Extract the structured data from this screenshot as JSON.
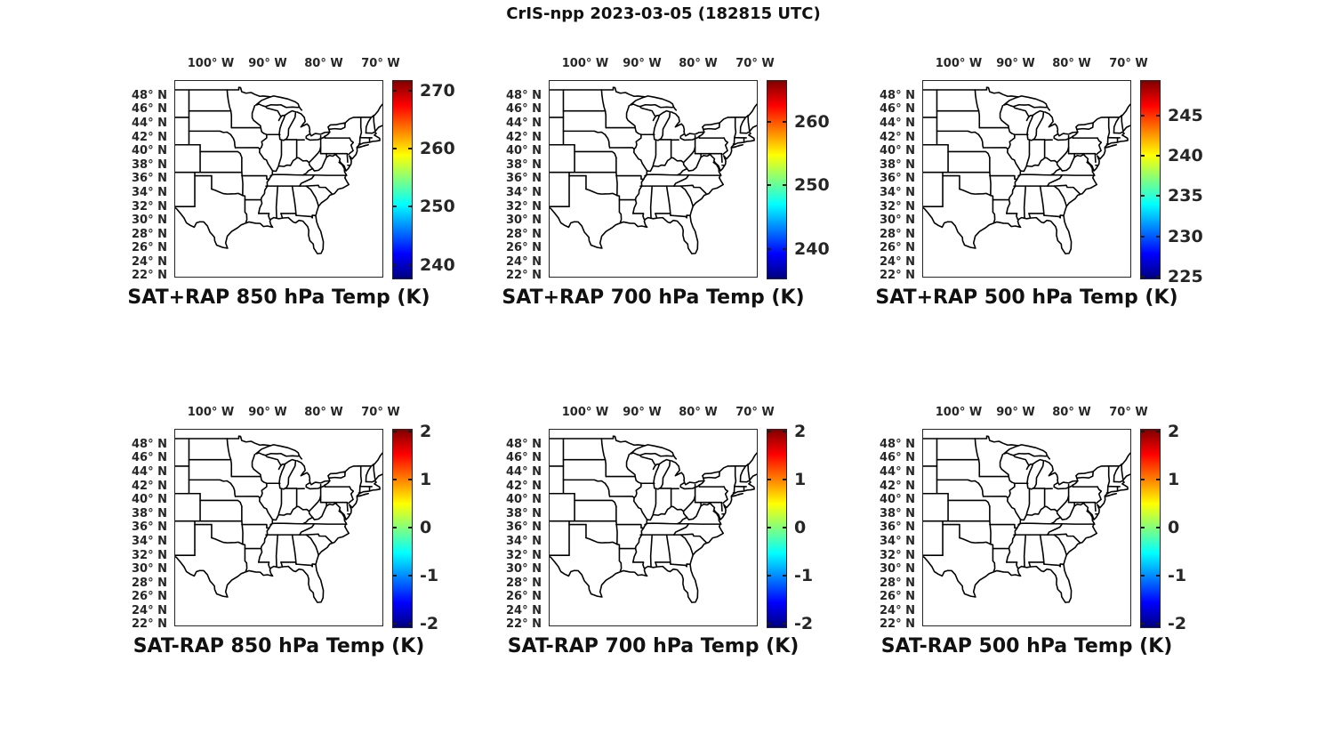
{
  "figure_title": "CrIS-npp 2023-03-05 (182815 UTC)",
  "colors": {
    "background": "#ffffff",
    "text": "#262626",
    "geo_line": "#000000",
    "frame": "#262626",
    "jet_stops": [
      "#800000",
      "#ff0000",
      "#ffff00",
      "#00ffff",
      "#0000ff",
      "#000080"
    ],
    "jet_positions": [
      0,
      0.125,
      0.375,
      0.625,
      0.875,
      1
    ]
  },
  "chart_data": [
    {
      "type": "heatmap",
      "title": "SAT+RAP 850 hPa Temp (K)",
      "basemap": "US state and coastline outlines (eastern CONUS)",
      "colormap": "jet",
      "lon_range": [
        -106.5,
        -69.5
      ],
      "lat_range": [
        21.8,
        50.3
      ],
      "x_tick_lons": [
        -100,
        -90,
        -80,
        -70
      ],
      "x_tick_labels": [
        "100° W",
        "90° W",
        "80° W",
        "70° W"
      ],
      "y_tick_lats": [
        48,
        46,
        44,
        42,
        40,
        38,
        36,
        34,
        32,
        30,
        28,
        26,
        24,
        22
      ],
      "y_tick_labels": [
        "48° N",
        "46° N",
        "44° N",
        "42° N",
        "40° N",
        "38° N",
        "36° N",
        "34° N",
        "32° N",
        "30° N",
        "28° N",
        "26° N",
        "24° N",
        "22° N"
      ],
      "colorbar_ticks": [
        270,
        260,
        250,
        240
      ],
      "colorbar_top_value": 271.8,
      "colorbar_bottom_value": 237.8,
      "values": "no gridded field visible; map interior blank"
    },
    {
      "type": "heatmap",
      "title": "SAT+RAP 700 hPa Temp (K)",
      "basemap": "US state and coastline outlines (eastern CONUS)",
      "colormap": "jet",
      "lon_range": [
        -106.5,
        -69.5
      ],
      "lat_range": [
        21.8,
        50.3
      ],
      "x_tick_lons": [
        -100,
        -90,
        -80,
        -70
      ],
      "x_tick_labels": [
        "100° W",
        "90° W",
        "80° W",
        "70° W"
      ],
      "y_tick_lats": [
        48,
        46,
        44,
        42,
        40,
        38,
        36,
        34,
        32,
        30,
        28,
        26,
        24,
        22
      ],
      "y_tick_labels": [
        "48° N",
        "46° N",
        "44° N",
        "42° N",
        "40° N",
        "38° N",
        "36° N",
        "34° N",
        "32° N",
        "30° N",
        "28° N",
        "26° N",
        "24° N",
        "22° N"
      ],
      "colorbar_ticks": [
        260,
        250,
        240
      ],
      "colorbar_top_value": 266.6,
      "colorbar_bottom_value": 235.5,
      "values": "no gridded field visible; map interior blank"
    },
    {
      "type": "heatmap",
      "title": "SAT+RAP 500 hPa Temp (K)",
      "basemap": "US state and coastline outlines (eastern CONUS)",
      "colormap": "jet",
      "lon_range": [
        -106.5,
        -69.5
      ],
      "lat_range": [
        21.8,
        50.3
      ],
      "x_tick_lons": [
        -100,
        -90,
        -80,
        -70
      ],
      "x_tick_labels": [
        "100° W",
        "90° W",
        "80° W",
        "70° W"
      ],
      "y_tick_lats": [
        48,
        46,
        44,
        42,
        40,
        38,
        36,
        34,
        32,
        30,
        28,
        26,
        24,
        22
      ],
      "y_tick_labels": [
        "48° N",
        "46° N",
        "44° N",
        "42° N",
        "40° N",
        "38° N",
        "36° N",
        "34° N",
        "32° N",
        "30° N",
        "28° N",
        "26° N",
        "24° N",
        "22° N"
      ],
      "colorbar_ticks": [
        245,
        240,
        235,
        230,
        225
      ],
      "colorbar_top_value": 249.4,
      "colorbar_bottom_value": 224.9,
      "values": "no gridded field visible; map interior blank"
    },
    {
      "type": "heatmap",
      "title": "SAT-RAP 850 hPa Temp (K)",
      "basemap": "US state and coastline outlines (eastern CONUS)",
      "colormap": "jet",
      "lon_range": [
        -106.5,
        -69.5
      ],
      "lat_range": [
        21.8,
        50.3
      ],
      "x_tick_lons": [
        -100,
        -90,
        -80,
        -70
      ],
      "x_tick_labels": [
        "100° W",
        "90° W",
        "80° W",
        "70° W"
      ],
      "y_tick_lats": [
        48,
        46,
        44,
        42,
        40,
        38,
        36,
        34,
        32,
        30,
        28,
        26,
        24,
        22
      ],
      "y_tick_labels": [
        "48° N",
        "46° N",
        "44° N",
        "42° N",
        "40° N",
        "38° N",
        "36° N",
        "34° N",
        "32° N",
        "30° N",
        "28° N",
        "26° N",
        "24° N",
        "22° N"
      ],
      "colorbar_ticks": [
        2,
        1,
        0,
        -1,
        -2
      ],
      "colorbar_top_value": 2.05,
      "colorbar_bottom_value": -2.05,
      "values": "no gridded field visible; map interior blank"
    },
    {
      "type": "heatmap",
      "title": "SAT-RAP 700 hPa Temp (K)",
      "basemap": "US state and coastline outlines (eastern CONUS)",
      "colormap": "jet",
      "lon_range": [
        -106.5,
        -69.5
      ],
      "lat_range": [
        21.8,
        50.3
      ],
      "x_tick_lons": [
        -100,
        -90,
        -80,
        -70
      ],
      "x_tick_labels": [
        "100° W",
        "90° W",
        "80° W",
        "70° W"
      ],
      "y_tick_lats": [
        48,
        46,
        44,
        42,
        40,
        38,
        36,
        34,
        32,
        30,
        28,
        26,
        24,
        22
      ],
      "y_tick_labels": [
        "48° N",
        "46° N",
        "44° N",
        "42° N",
        "40° N",
        "38° N",
        "36° N",
        "34° N",
        "32° N",
        "30° N",
        "28° N",
        "26° N",
        "24° N",
        "22° N"
      ],
      "colorbar_ticks": [
        2,
        1,
        0,
        -1,
        -2
      ],
      "colorbar_top_value": 2.05,
      "colorbar_bottom_value": -2.05,
      "values": "no gridded field visible; map interior blank"
    },
    {
      "type": "heatmap",
      "title": "SAT-RAP 500 hPa Temp (K)",
      "basemap": "US state and coastline outlines (eastern CONUS)",
      "colormap": "jet",
      "lon_range": [
        -106.5,
        -69.5
      ],
      "lat_range": [
        21.8,
        50.3
      ],
      "x_tick_lons": [
        -100,
        -90,
        -80,
        -70
      ],
      "x_tick_labels": [
        "100° W",
        "90° W",
        "80° W",
        "70° W"
      ],
      "y_tick_lats": [
        48,
        46,
        44,
        42,
        40,
        38,
        36,
        34,
        32,
        30,
        28,
        26,
        24,
        22
      ],
      "y_tick_labels": [
        "48° N",
        "46° N",
        "44° N",
        "42° N",
        "40° N",
        "38° N",
        "36° N",
        "34° N",
        "32° N",
        "30° N",
        "28° N",
        "26° N",
        "24° N",
        "22° N"
      ],
      "colorbar_ticks": [
        2,
        1,
        0,
        -1,
        -2
      ],
      "colorbar_top_value": 2.05,
      "colorbar_bottom_value": -2.05,
      "values": "no gridded field visible; map interior blank"
    }
  ]
}
